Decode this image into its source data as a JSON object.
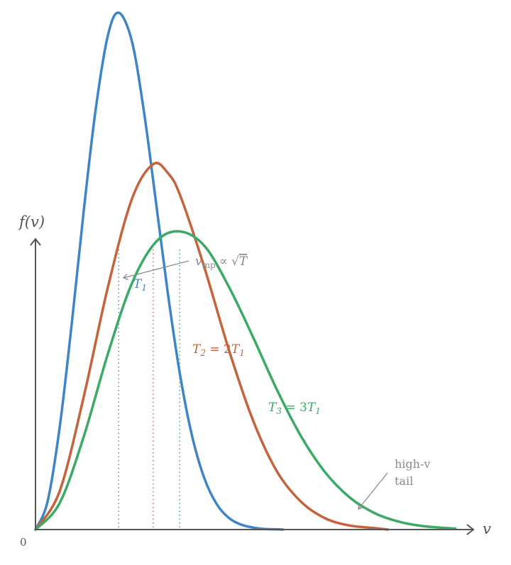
{
  "chart_data": {
    "type": "line",
    "title": "",
    "xlabel": "v",
    "ylabel": "f(v)",
    "origin_label": "0",
    "xlim": [
      0,
      3.48
    ],
    "ylim": [
      0,
      1.0
    ],
    "grid": false,
    "legend": "none",
    "series": [
      {
        "name": "T_1",
        "color": "#3d85c6",
        "v_mp": 0.69,
        "x": [
          0,
          0.1,
          0.2,
          0.3,
          0.4,
          0.5,
          0.6,
          0.69,
          0.8,
          0.9,
          1.0,
          1.1,
          1.2,
          1.3,
          1.4,
          1.5,
          1.6,
          1.7,
          1.8,
          1.9,
          2.0,
          2.05
        ],
        "y": [
          0,
          0.054,
          0.197,
          0.397,
          0.617,
          0.815,
          0.956,
          1.0,
          0.944,
          0.807,
          0.631,
          0.452,
          0.297,
          0.179,
          0.099,
          0.05,
          0.023,
          0.01,
          0.004,
          0.001,
          0.0005,
          0.0
        ]
      },
      {
        "name": "T_2 = 2T_1",
        "color": "#c5633b",
        "v_mp": 0.976,
        "x": [
          0,
          0.2,
          0.4,
          0.6,
          0.8,
          0.976,
          1.1,
          1.2,
          1.4,
          1.6,
          1.8,
          2.0,
          2.2,
          2.4,
          2.6,
          2.8,
          2.92
        ],
        "y": [
          0,
          0.074,
          0.257,
          0.469,
          0.64,
          0.707,
          0.689,
          0.646,
          0.507,
          0.35,
          0.213,
          0.113,
          0.054,
          0.022,
          0.008,
          0.003,
          0.0
        ]
      },
      {
        "name": "T_3 = 3T_1",
        "color": "#3aaa64",
        "v_mp": 1.195,
        "x": [
          0,
          0.2,
          0.4,
          0.6,
          0.8,
          1.0,
          1.195,
          1.4,
          1.6,
          1.8,
          2.0,
          2.2,
          2.4,
          2.6,
          2.8,
          3.0,
          3.2,
          3.4,
          3.48
        ],
        "y": [
          0,
          0.051,
          0.18,
          0.34,
          0.477,
          0.557,
          0.577,
          0.549,
          0.471,
          0.374,
          0.271,
          0.181,
          0.111,
          0.063,
          0.033,
          0.016,
          0.007,
          0.003,
          0.002
        ]
      }
    ],
    "annotations": {
      "vmp_text": "v_mp ∝ √T",
      "vmp_base": "v",
      "vmp_sub": "mp",
      "vmp_rest": " ∝ √",
      "vmp_T": "T",
      "t1_label": "T",
      "t1_sub": "1",
      "t2_label": "T",
      "t2_sub": "2",
      "t2_rest": " = 2",
      "t2_T": "T",
      "t2_sub2": "1",
      "t3_label": "T",
      "t3_sub": "3",
      "t3_rest": " = 3",
      "t3_T": "T",
      "t3_sub2": "1",
      "tail_line1": "high-v",
      "tail_line2": "tail"
    }
  }
}
